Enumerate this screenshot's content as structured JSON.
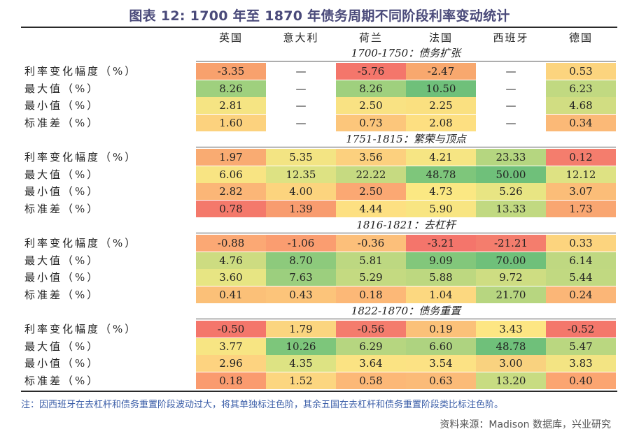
{
  "title": "图表 12: 1700 年至 1870 年债务周期不同阶段利率变动统计",
  "columns": [
    "英国",
    "意大利",
    "荷兰",
    "法国",
    "西班牙",
    "德国"
  ],
  "row_labels": [
    "利率变化幅度（%）",
    "最大值（%）",
    "最小值（%）",
    "标准差（%）"
  ],
  "sections": [
    {
      "period": "1700-1750：债务扩张",
      "rows": [
        [
          "-3.35",
          "—",
          "-5.76",
          "-2.47",
          "—",
          "0.53"
        ],
        [
          "8.26",
          "—",
          "8.26",
          "10.50",
          "—",
          "6.23"
        ],
        [
          "2.81",
          "—",
          "2.50",
          "2.25",
          "—",
          "4.68"
        ],
        [
          "1.60",
          "—",
          "0.73",
          "2.08",
          "—",
          "0.34"
        ]
      ],
      "colors": [
        [
          "#f8a16d",
          "#ffffff",
          "#f4766b",
          "#f8a86e",
          "#ffffff",
          "#fcd47e"
        ],
        [
          "#9fd07e",
          "#ffffff",
          "#9fd07e",
          "#6fc07a",
          "#ffffff",
          "#c1d981"
        ],
        [
          "#f5e483",
          "#ffffff",
          "#f9e283",
          "#fae080",
          "#ffffff",
          "#d1dd82"
        ],
        [
          "#fcd27e",
          "#ffffff",
          "#fcc67b",
          "#fddf81",
          "#ffffff",
          "#fbb977"
        ]
      ]
    },
    {
      "period": "1751-1815：繁荣与顶点",
      "rows": [
        [
          "1.97",
          "5.35",
          "3.56",
          "4.21",
          "23.33",
          "0.12"
        ],
        [
          "6.06",
          "12.35",
          "22.22",
          "48.78",
          "50.00",
          "12.12"
        ],
        [
          "2.82",
          "4.00",
          "2.50",
          "4.73",
          "5.26",
          "3.07"
        ],
        [
          "0.78",
          "1.39",
          "4.44",
          "5.90",
          "13.33",
          "1.73"
        ]
      ],
      "colors": [
        [
          "#f9ab72",
          "#f3e483",
          "#fcd07e",
          "#f6e583",
          "#b5d680",
          "#f47d6d"
        ],
        [
          "#f8e483",
          "#dde283",
          "#c6da81",
          "#7ec67b",
          "#6fc07a",
          "#dee283"
        ],
        [
          "#fbb677",
          "#fcd47e",
          "#fba873",
          "#fbe883",
          "#e8e583",
          "#fbbd78"
        ],
        [
          "#f4796b",
          "#f89c6f",
          "#fde082",
          "#f8e582",
          "#c1d981",
          "#f9a671"
        ]
      ]
    },
    {
      "period": "1816-1821：去杠杆",
      "rows": [
        [
          "-0.88",
          "-1.06",
          "-0.36",
          "-3.21",
          "-21.21",
          "0.33"
        ],
        [
          "4.76",
          "8.70",
          "5.81",
          "9.09",
          "70.00",
          "6.14"
        ],
        [
          "3.60",
          "7.63",
          "5.29",
          "5.88",
          "9.72",
          "5.44"
        ],
        [
          "0.41",
          "0.43",
          "0.18",
          "1.04",
          "21.70",
          "0.24"
        ]
      ],
      "colors": [
        [
          "#fba874",
          "#fa9d70",
          "#fcbf7a",
          "#f4756b",
          "#f47d6d",
          "#fcd47e"
        ],
        [
          "#cddc81",
          "#8dca7c",
          "#bdd881",
          "#82c77b",
          "#6fc07a",
          "#bfd881"
        ],
        [
          "#e7e583",
          "#9ccf7e",
          "#c4da81",
          "#bdd880",
          "#cedd82",
          "#c1d981"
        ],
        [
          "#fbc078",
          "#fcc47a",
          "#fcb877",
          "#fcd880",
          "#b7d680",
          "#fbb677"
        ]
      ]
    },
    {
      "period": "1822-1870：债务重置",
      "rows": [
        [
          "-0.50",
          "1.79",
          "-0.56",
          "0.19",
          "3.43",
          "-0.52"
        ],
        [
          "3.77",
          "10.26",
          "6.29",
          "6.60",
          "48.78",
          "5.47"
        ],
        [
          "2.96",
          "4.35",
          "3.64",
          "3.54",
          "3.00",
          "3.83"
        ],
        [
          "0.18",
          "1.52",
          "0.58",
          "0.63",
          "13.20",
          "0.40"
        ]
      ],
      "colors": [
        [
          "#f4766b",
          "#fbd57f",
          "#f47c6d",
          "#fbc179",
          "#fde683",
          "#f4776b"
        ],
        [
          "#f7e583",
          "#7dc67b",
          "#b6d680",
          "#aed380",
          "#6fc07a",
          "#bad780"
        ],
        [
          "#fdd380",
          "#dde383",
          "#fbe383",
          "#fce284",
          "#f9d27f",
          "#f3e483"
        ],
        [
          "#fa9b6f",
          "#fcd680",
          "#fcb877",
          "#fbbb78",
          "#c8dc82",
          "#fba571"
        ]
      ]
    }
  ],
  "note": "注：因西班牙在去杠杆和债务重置阶段波动过大，将其单独标注色阶，其余五国在去杠杆和债务重置阶段类比标注色阶。",
  "source": "资料来源：Madison 数据库，兴业研究"
}
